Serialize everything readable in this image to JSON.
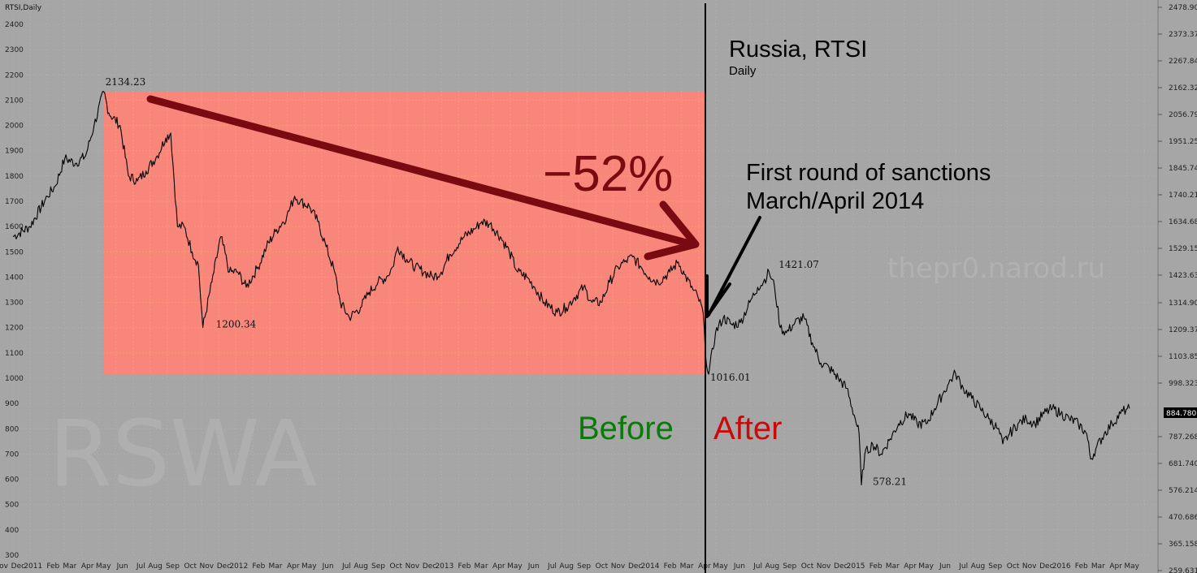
{
  "chart_data": {
    "type": "line",
    "series_label": "RTSI,Daily",
    "title": "Russia, RTSI",
    "subtitle": "Daily",
    "watermark_left": "RSWA",
    "watermark_right": "thepr0.narod.ru",
    "left_axis": {
      "ylim": [
        250,
        2500
      ],
      "ticks": [
        300,
        400,
        500,
        600,
        700,
        800,
        900,
        1000,
        1100,
        1200,
        1300,
        1400,
        1500,
        1600,
        1700,
        1800,
        1900,
        2000,
        2100,
        2200,
        2300,
        2400
      ],
      "tick_labels": [
        "300",
        "400",
        "500",
        "600",
        "700",
        "800",
        "900",
        "1000",
        "1100",
        "1200",
        "1300",
        "1400",
        "1500",
        "1600",
        "1700",
        "1800",
        "1900",
        "2000",
        "2100",
        "2200",
        "2300",
        "2400"
      ]
    },
    "right_axis": {
      "ticks": [
        259.631,
        365.158,
        470.686,
        576.214,
        681.74,
        787.268,
        998.323,
        1103.85,
        1209.37,
        1314.9,
        1423.63,
        1529.15,
        1634.68,
        1740.21,
        1845.74,
        1951.25,
        2056.79,
        2162.32,
        2267.84,
        2373.37,
        2478.9
      ],
      "tick_labels": [
        "259.631",
        "365.158",
        "470.686",
        "576.214",
        "681.740",
        "787.268",
        "998.323",
        "1103.85",
        "1209.37",
        "1314.90",
        "1423.63",
        "1529.15",
        "1634.68",
        "1740.21",
        "1845.74",
        "1951.25",
        "2056.79",
        "2162.32",
        "2267.84",
        "2373.37",
        "2478.90"
      ],
      "current_value": "884.780"
    },
    "x_labels": [
      "Nov",
      "Dec",
      "2011",
      "Feb",
      "Mar",
      "Apr",
      "May",
      "Jun",
      "Jul",
      "Aug",
      "Sep",
      "Oct",
      "Nov",
      "Dec",
      "2012",
      "Feb",
      "Mar",
      "Apr",
      "May",
      "Jun",
      "Jul",
      "Aug",
      "Sep",
      "Oct",
      "Nov",
      "Dec",
      "2013",
      "Feb",
      "Mar",
      "Apr",
      "May",
      "Jun",
      "Jul",
      "Aug",
      "Sep",
      "Oct",
      "Nov",
      "Dec",
      "2014",
      "Feb",
      "Mar",
      "Apr",
      "May",
      "Jun",
      "Jul",
      "Aug",
      "Sep",
      "Oct",
      "Nov",
      "Dec",
      "2015",
      "Feb",
      "Mar",
      "Apr",
      "May",
      "Jun",
      "Jul",
      "Aug",
      "Sep",
      "Oct",
      "Nov",
      "Dec",
      "2016",
      "Feb",
      "Mar",
      "Apr",
      "May"
    ],
    "x_range": [
      "2010-11",
      "2016-05"
    ],
    "series": [
      {
        "x": [
          "2010-11-01",
          "2010-12-01",
          "2011-01-01",
          "2011-01-15",
          "2011-02-01",
          "2011-02-20",
          "2011-03-10",
          "2011-03-25",
          "2011-04-11",
          "2011-04-20",
          "2011-05-10",
          "2011-05-25",
          "2011-06-10",
          "2011-06-25",
          "2011-07-15",
          "2011-07-30",
          "2011-08-08",
          "2011-08-20",
          "2011-09-01",
          "2011-09-15",
          "2011-09-26",
          "2011-10-04",
          "2011-10-20",
          "2011-11-05",
          "2011-11-20",
          "2011-12-05",
          "2011-12-20",
          "2012-01-10",
          "2012-01-25",
          "2012-02-10",
          "2012-03-01",
          "2012-03-15",
          "2012-03-25",
          "2012-04-10",
          "2012-04-25",
          "2012-05-10",
          "2012-05-25",
          "2012-06-04",
          "2012-06-20",
          "2012-07-10",
          "2012-07-25",
          "2012-08-10",
          "2012-08-25",
          "2012-09-05",
          "2012-09-14",
          "2012-09-30",
          "2012-10-15",
          "2012-10-31",
          "2012-11-15",
          "2012-11-30",
          "2012-12-15",
          "2013-01-10",
          "2013-01-28",
          "2013-02-10",
          "2013-02-25",
          "2013-03-15",
          "2013-03-31",
          "2013-04-15",
          "2013-05-01",
          "2013-05-15",
          "2013-06-01",
          "2013-06-24",
          "2013-07-10",
          "2013-07-25",
          "2013-08-10",
          "2013-08-25",
          "2013-09-10",
          "2013-09-25",
          "2013-10-10",
          "2013-10-22",
          "2013-11-05",
          "2013-11-20",
          "2013-12-05",
          "2013-12-20",
          "2014-01-10",
          "2014-01-25",
          "2014-02-05",
          "2014-02-20",
          "2014-03-01",
          "2014-03-10",
          "2014-03-14",
          "2014-03-20",
          "2014-04-01",
          "2014-04-15",
          "2014-05-01",
          "2014-05-15",
          "2014-06-01",
          "2014-06-15",
          "2014-06-25",
          "2014-07-05",
          "2014-07-15",
          "2014-07-25",
          "2014-08-05",
          "2014-08-20",
          "2014-09-05",
          "2014-09-20",
          "2014-10-05",
          "2014-10-20",
          "2014-11-05",
          "2014-11-20",
          "2014-12-05",
          "2014-12-12",
          "2014-12-16",
          "2014-12-22",
          "2015-01-05",
          "2015-01-20",
          "2015-02-05",
          "2015-02-20",
          "2015-03-10",
          "2015-03-25",
          "2015-04-10",
          "2015-04-25",
          "2015-05-10",
          "2015-05-20",
          "2015-06-01",
          "2015-06-15",
          "2015-06-30",
          "2015-07-15",
          "2015-07-30",
          "2015-08-15",
          "2015-08-24",
          "2015-09-05",
          "2015-09-20",
          "2015-10-05",
          "2015-10-20",
          "2015-11-05",
          "2015-11-20",
          "2015-12-05",
          "2015-12-20",
          "2016-01-05",
          "2016-01-20",
          "2016-01-27",
          "2016-02-05",
          "2016-02-20",
          "2016-03-05",
          "2016-03-20",
          "2016-04-01",
          "2016-04-05"
        ],
        "y": [
          1560,
          1600,
          1720,
          1760,
          1870,
          1850,
          1880,
          2000,
          2134.23,
          2050,
          2000,
          1800,
          1780,
          1820,
          1880,
          1950,
          1970,
          1600,
          1600,
          1500,
          1450,
          1200.34,
          1380,
          1560,
          1420,
          1420,
          1360,
          1440,
          1520,
          1580,
          1640,
          1720,
          1700,
          1680,
          1620,
          1520,
          1420,
          1300,
          1240,
          1280,
          1340,
          1380,
          1400,
          1440,
          1520,
          1470,
          1440,
          1420,
          1400,
          1420,
          1490,
          1560,
          1590,
          1620,
          1610,
          1560,
          1500,
          1420,
          1400,
          1360,
          1300,
          1260,
          1280,
          1320,
          1360,
          1300,
          1300,
          1380,
          1440,
          1460,
          1480,
          1440,
          1400,
          1380,
          1420,
          1460,
          1410,
          1350,
          1320,
          1260,
          1100,
          1016.01,
          1180,
          1240,
          1210,
          1220,
          1300,
          1360,
          1380,
          1421.07,
          1360,
          1200,
          1180,
          1220,
          1240,
          1140,
          1060,
          1040,
          1000,
          960,
          840,
          780,
          578.21,
          700,
          740,
          700,
          760,
          820,
          860,
          820,
          820,
          880,
          940,
          980,
          1020,
          960,
          920,
          880,
          840,
          800,
          740,
          780,
          820,
          840,
          820,
          860,
          880,
          860,
          840,
          820,
          780,
          680,
          720,
          780,
          820,
          860,
          880,
          880
        ]
      }
    ],
    "annotations": {
      "peak": "2134.23",
      "low_2011": "1200.34",
      "low_2014": "1016.01",
      "peak_2014": "1421.07",
      "low_2014_dec": "578.21"
    },
    "callouts": {
      "drop": "−52%",
      "sanctions_line1": "First round of sanctions",
      "sanctions_line2": "March/April 2014",
      "before": "Before",
      "after": "After"
    },
    "highlight": {
      "x0": "2011-04-11",
      "x1": "2014-03-14",
      "y0": 1016.01,
      "y1": 2134.23,
      "color": "#f8867a"
    },
    "divider_date": "2014-03-14",
    "colors": {
      "background": "#a6a6a6",
      "price_line": "#000000",
      "drop_arrow": "#7a0a12",
      "before": "#0a7a0a",
      "after": "#c80a0a",
      "low_label": "#1f2a9c"
    }
  }
}
